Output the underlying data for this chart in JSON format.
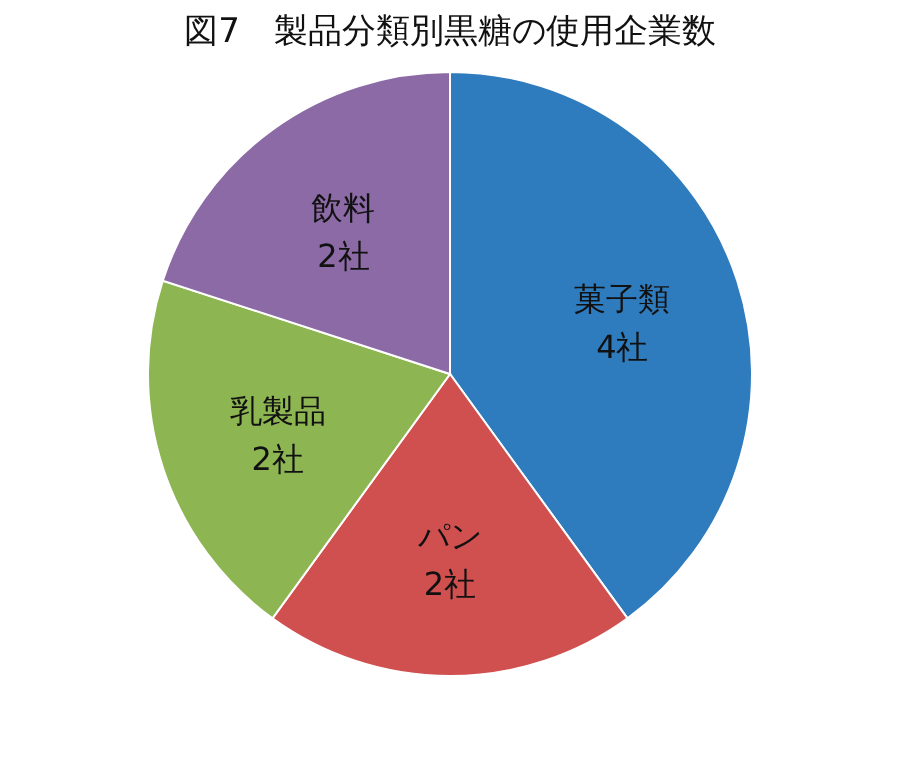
{
  "chart_data": {
    "type": "pie",
    "title": "図7　製品分類別黒糖の使用企業数",
    "categories": [
      "菓子類",
      "パン",
      "乳製品",
      "飲料"
    ],
    "values": [
      4,
      2,
      2,
      2
    ],
    "value_labels": [
      "4社",
      "2社",
      "2社",
      "2社"
    ],
    "colors": [
      "#2e7bbd",
      "#d0504f",
      "#8db552",
      "#8b6aa5"
    ]
  }
}
